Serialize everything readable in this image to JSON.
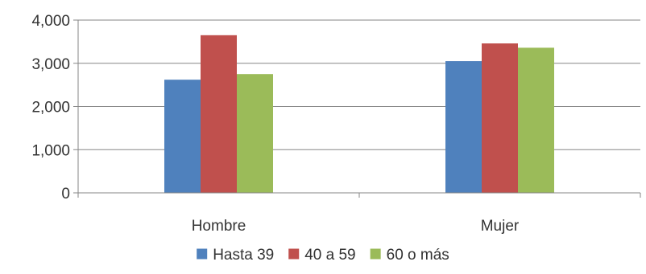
{
  "chart_data": {
    "type": "bar",
    "categories": [
      "Hombre",
      "Mujer"
    ],
    "series": [
      {
        "name": "Hasta 39",
        "values": [
          2620,
          3050
        ],
        "color": "#4F81BD"
      },
      {
        "name": "40 a 59",
        "values": [
          3650,
          3460
        ],
        "color": "#C0504D"
      },
      {
        "name": "60 o más",
        "values": [
          2750,
          3360
        ],
        "color": "#9BBB59"
      }
    ],
    "ylim": [
      0,
      4000
    ],
    "yticks": [
      0,
      1000,
      2000,
      3000,
      4000
    ],
    "ytick_labels": [
      "0",
      "1,000",
      "2,000",
      "3,000",
      "4,000"
    ],
    "grid": true,
    "legend_position": "bottom"
  }
}
